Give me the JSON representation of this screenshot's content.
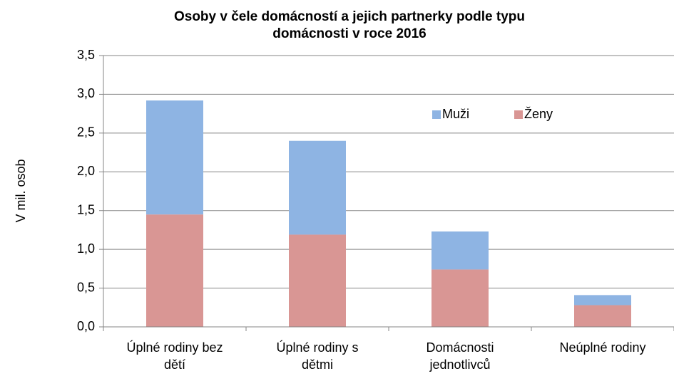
{
  "chart_data": {
    "type": "stacked_bar",
    "title": [
      "Osoby v čele domácností  a jejich partnerky  podle typu",
      "domácnosti  v roce 2016"
    ],
    "y_label": "V mil. osob",
    "categories": [
      [
        "Úplné rodiny bez",
        "dětí"
      ],
      [
        "Úplné rodiny s",
        "dětmi"
      ],
      [
        "Domácnosti",
        "jednotlivců"
      ],
      [
        "Neúplné rodiny"
      ]
    ],
    "series": [
      {
        "name": "Ženy",
        "color": "#d99694",
        "values": [
          1.45,
          1.19,
          0.74,
          0.28
        ]
      },
      {
        "name": "Muži",
        "color": "#8eb4e3",
        "values": [
          1.47,
          1.21,
          0.49,
          0.13
        ]
      }
    ],
    "legend_order": [
      1,
      0
    ],
    "ylim": [
      0,
      3.5
    ],
    "yticks": [
      {
        "value": 0,
        "label": "0,0"
      },
      {
        "value": 0.5,
        "label": "0,5"
      },
      {
        "value": 1,
        "label": "1,0"
      },
      {
        "value": 1.5,
        "label": "1,5"
      },
      {
        "value": 2,
        "label": "2,0"
      },
      {
        "value": 2.5,
        "label": "2,5"
      },
      {
        "value": 3,
        "label": "3,0"
      },
      {
        "value": 3.5,
        "label": "3,5"
      }
    ],
    "grid": true
  }
}
